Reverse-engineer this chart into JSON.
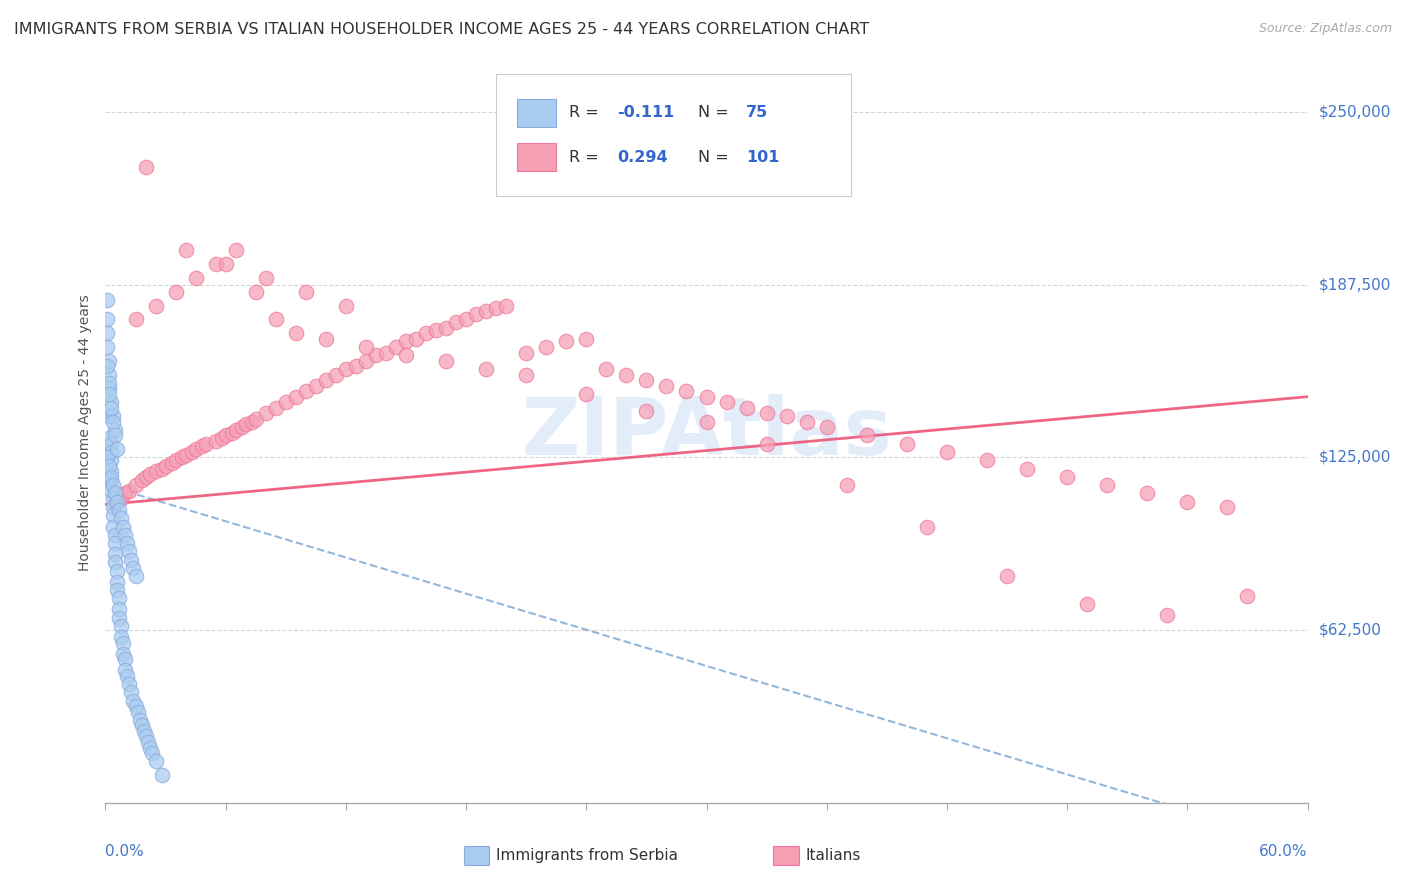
{
  "title": "IMMIGRANTS FROM SERBIA VS ITALIAN HOUSEHOLDER INCOME AGES 25 - 44 YEARS CORRELATION CHART",
  "source": "Source: ZipAtlas.com",
  "ylabel": "Householder Income Ages 25 - 44 years",
  "ytick_labels": [
    "$62,500",
    "$125,000",
    "$187,500",
    "$250,000"
  ],
  "ytick_values": [
    62500,
    125000,
    187500,
    250000
  ],
  "xmin": 0.0,
  "xmax": 0.6,
  "ymin": 0,
  "ymax": 268000,
  "serbia_color": "#aaccf0",
  "italians_color": "#f5a0b5",
  "serbia_edge_color": "#88aadd",
  "italians_edge_color": "#ee7799",
  "serbia_line_color": "#6699cc",
  "italians_line_color": "#ee5577",
  "axis_label_color": "#4477cc",
  "title_color": "#333333",
  "watermark_color": "#c8ddf5",
  "legend_N_color": "#3366cc",
  "serbia_legend_color": "#aaccf0",
  "italians_legend_color": "#f5a0b5",
  "serbia_x": [
    0.001,
    0.001,
    0.001,
    0.001,
    0.002,
    0.002,
    0.002,
    0.002,
    0.002,
    0.003,
    0.003,
    0.003,
    0.003,
    0.003,
    0.003,
    0.004,
    0.004,
    0.004,
    0.004,
    0.005,
    0.005,
    0.005,
    0.005,
    0.006,
    0.006,
    0.006,
    0.007,
    0.007,
    0.007,
    0.008,
    0.008,
    0.009,
    0.009,
    0.01,
    0.01,
    0.011,
    0.012,
    0.013,
    0.014,
    0.015,
    0.016,
    0.017,
    0.018,
    0.019,
    0.02,
    0.021,
    0.022,
    0.023,
    0.025,
    0.028,
    0.001,
    0.002,
    0.003,
    0.004,
    0.005,
    0.006,
    0.007,
    0.008,
    0.009,
    0.01,
    0.011,
    0.012,
    0.013,
    0.014,
    0.015,
    0.003,
    0.004,
    0.005,
    0.002,
    0.001,
    0.002,
    0.003,
    0.004,
    0.005,
    0.006
  ],
  "serbia_y": [
    182000,
    175000,
    170000,
    165000,
    160000,
    155000,
    150000,
    140000,
    132000,
    130000,
    127000,
    124000,
    120000,
    117000,
    113000,
    110000,
    107000,
    104000,
    100000,
    97000,
    94000,
    90000,
    87000,
    84000,
    80000,
    77000,
    74000,
    70000,
    67000,
    64000,
    60000,
    58000,
    54000,
    52000,
    48000,
    46000,
    43000,
    40000,
    37000,
    35000,
    33000,
    30000,
    28000,
    26000,
    24000,
    22000,
    20000,
    18000,
    15000,
    10000,
    125000,
    122000,
    118000,
    115000,
    112000,
    109000,
    106000,
    103000,
    100000,
    97000,
    94000,
    91000,
    88000,
    85000,
    82000,
    145000,
    140000,
    135000,
    152000,
    158000,
    148000,
    143000,
    138000,
    133000,
    128000
  ],
  "italians_x": [
    0.005,
    0.008,
    0.01,
    0.012,
    0.015,
    0.018,
    0.02,
    0.022,
    0.025,
    0.028,
    0.03,
    0.033,
    0.035,
    0.038,
    0.04,
    0.043,
    0.045,
    0.048,
    0.05,
    0.055,
    0.058,
    0.06,
    0.063,
    0.065,
    0.068,
    0.07,
    0.073,
    0.075,
    0.08,
    0.085,
    0.09,
    0.095,
    0.1,
    0.105,
    0.11,
    0.115,
    0.12,
    0.125,
    0.13,
    0.135,
    0.14,
    0.145,
    0.15,
    0.155,
    0.16,
    0.165,
    0.17,
    0.175,
    0.18,
    0.185,
    0.19,
    0.195,
    0.2,
    0.21,
    0.22,
    0.23,
    0.24,
    0.25,
    0.26,
    0.27,
    0.28,
    0.29,
    0.3,
    0.31,
    0.32,
    0.33,
    0.34,
    0.35,
    0.36,
    0.38,
    0.4,
    0.42,
    0.44,
    0.46,
    0.48,
    0.5,
    0.52,
    0.54,
    0.56,
    0.015,
    0.025,
    0.035,
    0.045,
    0.055,
    0.065,
    0.075,
    0.085,
    0.095,
    0.11,
    0.13,
    0.15,
    0.17,
    0.19,
    0.21,
    0.24,
    0.27,
    0.3,
    0.33,
    0.37,
    0.41,
    0.45,
    0.49,
    0.53,
    0.57,
    0.02,
    0.04,
    0.06,
    0.08,
    0.1,
    0.12
  ],
  "italians_y": [
    108000,
    110000,
    112000,
    113000,
    115000,
    117000,
    118000,
    119000,
    120000,
    121000,
    122000,
    123000,
    124000,
    125000,
    126000,
    127000,
    128000,
    129000,
    130000,
    131000,
    132000,
    133000,
    134000,
    135000,
    136000,
    137000,
    138000,
    139000,
    141000,
    143000,
    145000,
    147000,
    149000,
    151000,
    153000,
    155000,
    157000,
    158000,
    160000,
    162000,
    163000,
    165000,
    167000,
    168000,
    170000,
    171000,
    172000,
    174000,
    175000,
    177000,
    178000,
    179000,
    180000,
    163000,
    165000,
    167000,
    168000,
    157000,
    155000,
    153000,
    151000,
    149000,
    147000,
    145000,
    143000,
    141000,
    140000,
    138000,
    136000,
    133000,
    130000,
    127000,
    124000,
    121000,
    118000,
    115000,
    112000,
    109000,
    107000,
    175000,
    180000,
    185000,
    190000,
    195000,
    200000,
    185000,
    175000,
    170000,
    168000,
    165000,
    162000,
    160000,
    157000,
    155000,
    148000,
    142000,
    138000,
    130000,
    115000,
    100000,
    82000,
    72000,
    68000,
    75000,
    230000,
    200000,
    195000,
    190000,
    185000,
    180000
  ]
}
